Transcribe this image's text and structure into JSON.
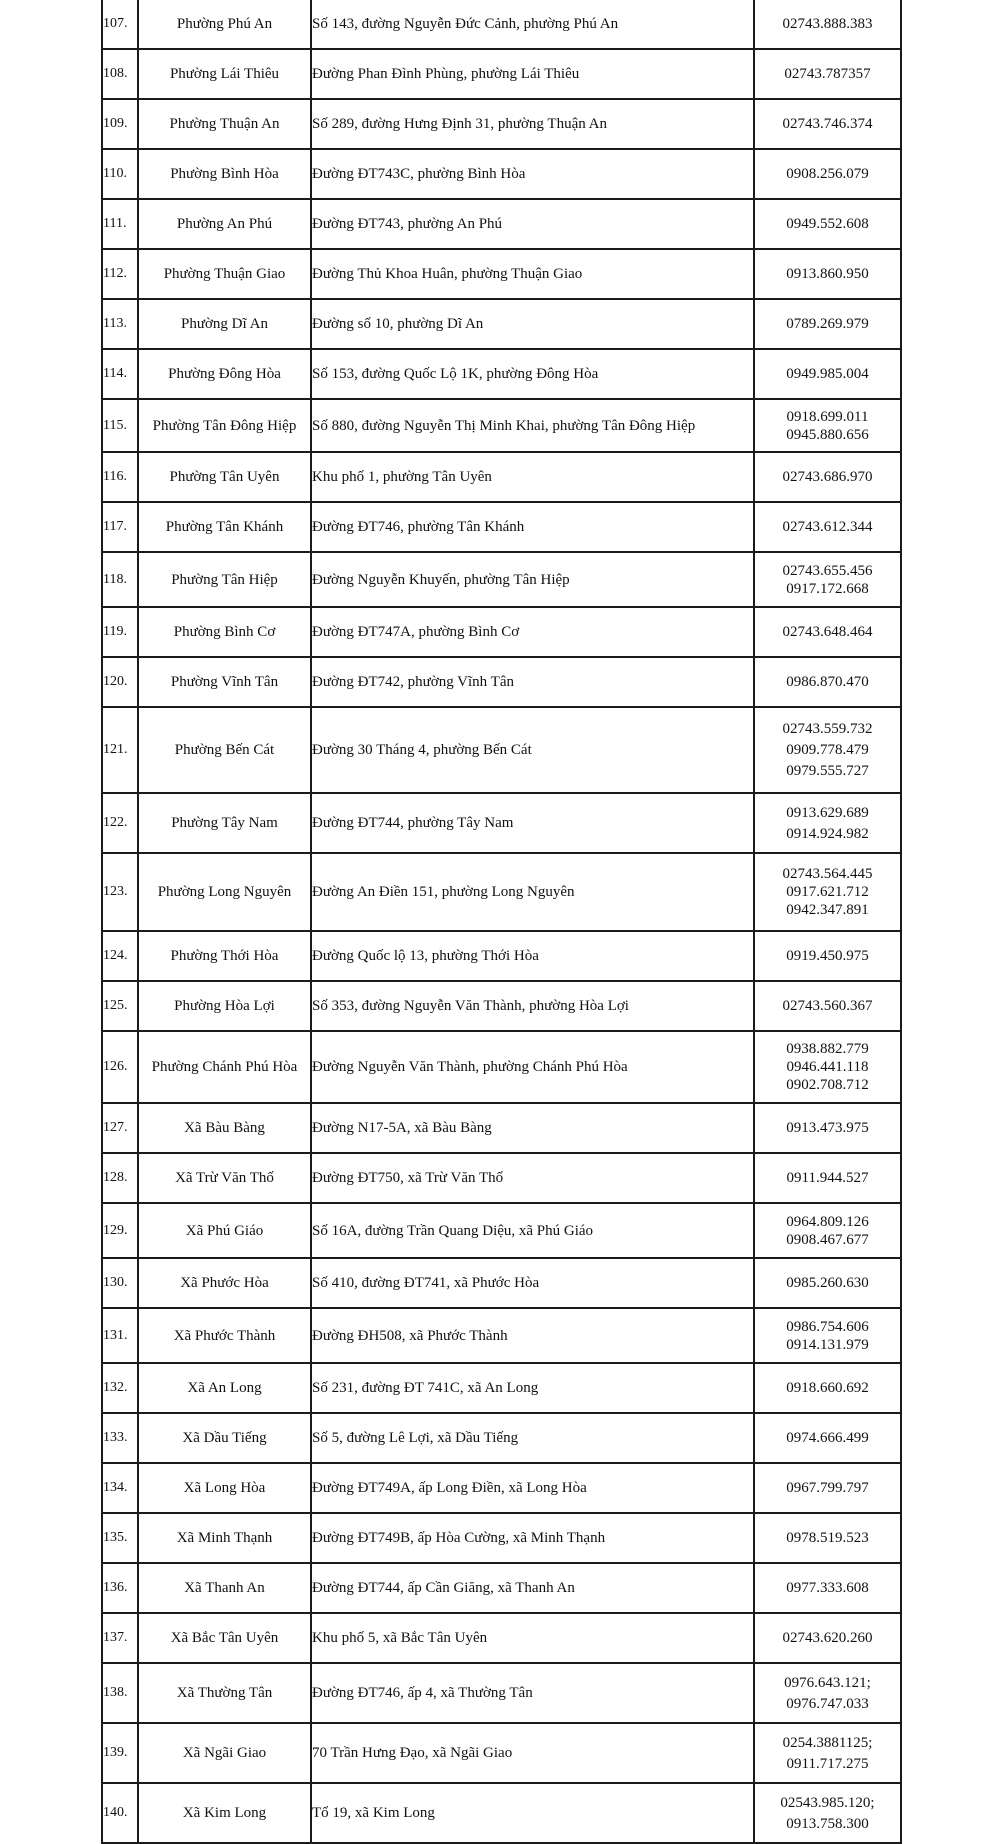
{
  "rows": [
    {
      "no": "107.",
      "name": "Phường Phú An",
      "address": "Số 143, đường Nguyễn Đức Cảnh, phường Phú An",
      "phones": [
        "02743.888.383"
      ]
    },
    {
      "no": "108.",
      "name": "Phường Lái Thiêu",
      "address": "Đường Phan Đình Phùng, phường Lái Thiêu",
      "phones": [
        "02743.787357"
      ]
    },
    {
      "no": "109.",
      "name": "Phường Thuận An",
      "address": "Số 289, đường Hưng Định 31, phường Thuận An",
      "phones": [
        "02743.746.374"
      ]
    },
    {
      "no": "110.",
      "name": "Phường Bình Hòa",
      "address": "Đường ĐT743C, phường Bình Hòa",
      "phones": [
        "0908.256.079"
      ]
    },
    {
      "no": "111.",
      "name": "Phường An Phú",
      "address": "Đường ĐT743, phường An Phú",
      "phones": [
        "0949.552.608"
      ]
    },
    {
      "no": "112.",
      "name": "Phường Thuận Giao",
      "address": "Đường Thủ Khoa Huân, phường Thuận Giao",
      "phones": [
        "0913.860.950"
      ]
    },
    {
      "no": "113.",
      "name": "Phường Dĩ An",
      "address": "Đường số 10, phường Dĩ An",
      "phones": [
        "0789.269.979"
      ]
    },
    {
      "no": "114.",
      "name": "Phường Đông Hòa",
      "address": "Số 153, đường Quốc Lộ 1K, phường Đông Hòa",
      "phones": [
        "0949.985.004"
      ]
    },
    {
      "no": "115.",
      "name": "Phường Tân Đông Hiệp",
      "address": "Số 880, đường Nguyễn Thị Minh Khai, phường Tân Đông Hiệp",
      "phones": [
        "0918.699.011",
        "0945.880.656"
      ]
    },
    {
      "no": "116.",
      "name": "Phường Tân Uyên",
      "address": "Khu phố 1, phường Tân Uyên",
      "phones": [
        "02743.686.970"
      ]
    },
    {
      "no": "117.",
      "name": "Phường Tân Khánh",
      "address": "Đường ĐT746, phường Tân Khánh",
      "phones": [
        "02743.612.344"
      ]
    },
    {
      "no": "118.",
      "name": "Phường Tân Hiệp",
      "address": "Đường Nguyễn Khuyến, phường Tân Hiệp",
      "phones": [
        "02743.655.456",
        "0917.172.668"
      ]
    },
    {
      "no": "119.",
      "name": "Phường Bình Cơ",
      "address": "Đường ĐT747A, phường Bình Cơ",
      "phones": [
        "02743.648.464"
      ]
    },
    {
      "no": "120.",
      "name": "Phường Vĩnh Tân",
      "address": "Đường ĐT742, phường Vĩnh Tân",
      "phones": [
        "0986.870.470"
      ]
    },
    {
      "no": "121.",
      "name": "Phường Bến Cát",
      "address": "Đường 30 Tháng 4, phường Bến Cát",
      "phones": [
        "02743.559.732",
        "0909.778.479",
        "0979.555.727"
      ]
    },
    {
      "no": "122.",
      "name": "Phường Tây Nam",
      "address": "Đường ĐT744, phường Tây Nam",
      "phones": [
        "0913.629.689",
        "0914.924.982"
      ]
    },
    {
      "no": "123.",
      "name": "Phường Long Nguyên",
      "address": "Đường An Điền 151, phường Long Nguyên",
      "phones": [
        "02743.564.445",
        "0917.621.712",
        "0942.347.891"
      ]
    },
    {
      "no": "124.",
      "name": "Phường Thới Hòa",
      "address": "Đường Quốc lộ 13, phường Thới Hòa",
      "phones": [
        "0919.450.975"
      ]
    },
    {
      "no": "125.",
      "name": "Phường Hòa Lợi",
      "address": "Số 353, đường Nguyễn Văn Thành, phường Hòa Lợi",
      "phones": [
        "02743.560.367"
      ]
    },
    {
      "no": "126.",
      "name": "Phường Chánh Phú Hòa",
      "address": "Đường Nguyễn Văn Thành, phường Chánh Phú Hòa",
      "phones": [
        "0938.882.779",
        "0946.441.118",
        "0902.708.712"
      ]
    },
    {
      "no": "127.",
      "name": "Xã Bàu Bàng",
      "address": "Đường N17-5A, xã Bàu Bàng",
      "phones": [
        "0913.473.975"
      ]
    },
    {
      "no": "128.",
      "name": "Xã Trừ Văn Thố",
      "address": "Đường ĐT750, xã Trừ Văn Thố",
      "phones": [
        "0911.944.527"
      ]
    },
    {
      "no": "129.",
      "name": "Xã Phú Giáo",
      "address": "Số 16A, đường Trần Quang Diệu, xã Phú Giáo",
      "phones": [
        "0964.809.126",
        "0908.467.677"
      ]
    },
    {
      "no": "130.",
      "name": "Xã Phước Hòa",
      "address": "Số 410, đường ĐT741, xã Phước Hòa",
      "phones": [
        "0985.260.630"
      ]
    },
    {
      "no": "131.",
      "name": "Xã Phước Thành",
      "address": "Đường ĐH508, xã Phước Thành",
      "phones": [
        "0986.754.606",
        "0914.131.979"
      ]
    },
    {
      "no": "132.",
      "name": "Xã An Long",
      "address": "Số 231, đường ĐT 741C, xã An Long",
      "phones": [
        "0918.660.692"
      ]
    },
    {
      "no": "133.",
      "name": "Xã Dầu Tiếng",
      "address": "Số 5, đường Lê Lợi, xã Dầu Tiếng",
      "phones": [
        "0974.666.499"
      ]
    },
    {
      "no": "134.",
      "name": "Xã Long Hòa",
      "address": "Đường ĐT749A, ấp Long Điền, xã Long Hòa",
      "phones": [
        "0967.799.797"
      ]
    },
    {
      "no": "135.",
      "name": "Xã Minh Thạnh",
      "address": "Đường ĐT749B, ấp Hòa Cường, xã Minh Thạnh",
      "phones": [
        "0978.519.523"
      ]
    },
    {
      "no": "136.",
      "name": "Xã Thanh An",
      "address": "Đường ĐT744, ấp Cần Giăng, xã Thanh An",
      "phones": [
        "0977.333.608"
      ]
    },
    {
      "no": "137.",
      "name": "Xã Bắc Tân Uyên",
      "address": "Khu phố 5, xã Bắc Tân Uyên",
      "phones": [
        "02743.620.260"
      ]
    },
    {
      "no": "138.",
      "name": "Xã Thường Tân",
      "address": "Đường ĐT746, ấp 4, xã Thường Tân",
      "phones": [
        "0976.643.121;",
        "0976.747.033"
      ]
    },
    {
      "no": "139.",
      "name": "Xã Ngãi Giao",
      "address": "70 Trần Hưng Đạo, xã Ngãi Giao",
      "phones": [
        "0254.3881125;",
        "0911.717.275"
      ]
    },
    {
      "no": "140.",
      "name": "Xã Kim Long",
      "address": "Tổ 19, xã Kim Long",
      "phones": [
        "02543.985.120;",
        "0913.758.300"
      ]
    }
  ]
}
